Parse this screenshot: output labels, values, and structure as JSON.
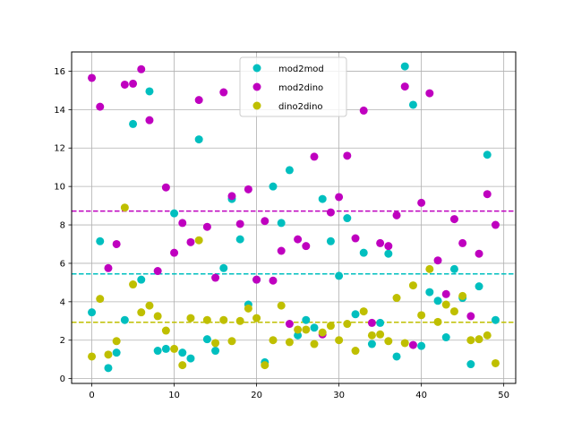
{
  "chart_data": {
    "type": "scatter",
    "title": "",
    "xlabel": "",
    "ylabel": "",
    "xlim": [
      -2.45,
      51.45
    ],
    "ylim": [
      -0.25,
      17.0
    ],
    "x_ticks": [
      0,
      10,
      20,
      30,
      40,
      50
    ],
    "y_ticks": [
      0,
      2,
      4,
      6,
      8,
      10,
      12,
      14,
      16
    ],
    "grid": true,
    "legend_position": "top-center",
    "x": [
      0,
      1,
      2,
      3,
      4,
      5,
      6,
      7,
      8,
      9,
      10,
      11,
      12,
      13,
      14,
      15,
      16,
      17,
      18,
      19,
      20,
      21,
      22,
      23,
      24,
      25,
      26,
      27,
      28,
      29,
      30,
      31,
      32,
      33,
      34,
      35,
      36,
      37,
      38,
      39,
      40,
      41,
      42,
      43,
      44,
      45,
      46,
      47,
      48,
      49
    ],
    "series": [
      {
        "name": "mod2mod",
        "color": "#00bfbf",
        "mean": 5.45,
        "values": [
          3.45,
          7.15,
          0.55,
          1.35,
          3.05,
          13.25,
          5.15,
          14.95,
          1.45,
          1.55,
          8.6,
          1.35,
          1.05,
          12.45,
          2.05,
          1.45,
          5.75,
          9.35,
          7.25,
          3.85,
          5.15,
          0.85,
          10.0,
          8.1,
          10.85,
          2.25,
          3.05,
          2.65,
          9.35,
          7.15,
          5.35,
          8.35,
          3.35,
          6.55,
          1.8,
          2.9,
          6.5,
          1.15,
          16.25,
          14.25,
          1.7,
          4.5,
          4.05,
          2.15,
          5.7,
          4.2,
          0.75,
          4.8,
          11.65,
          3.05
        ]
      },
      {
        "name": "mod2dino",
        "color": "#bf00bf",
        "mean": 8.72,
        "values": [
          15.65,
          14.15,
          5.75,
          7.0,
          15.3,
          15.35,
          16.1,
          13.45,
          5.6,
          9.95,
          6.55,
          8.1,
          7.1,
          14.5,
          7.9,
          5.25,
          14.9,
          9.5,
          8.05,
          9.85,
          5.15,
          8.2,
          5.1,
          6.65,
          2.85,
          7.25,
          6.9,
          11.55,
          2.3,
          8.65,
          9.45,
          11.6,
          7.3,
          13.95,
          2.9,
          7.05,
          6.9,
          8.5,
          15.2,
          1.75,
          9.15,
          14.85,
          6.15,
          4.4,
          8.3,
          7.05,
          3.25,
          6.5,
          9.6,
          8.0
        ]
      },
      {
        "name": "dino2dino",
        "color": "#bfbf00",
        "mean": 2.93,
        "values": [
          1.15,
          4.15,
          1.25,
          1.95,
          8.9,
          4.9,
          3.45,
          3.8,
          3.25,
          2.5,
          1.55,
          0.7,
          3.15,
          7.2,
          3.05,
          1.85,
          3.05,
          1.95,
          3.0,
          3.65,
          3.15,
          0.7,
          2.0,
          3.8,
          1.9,
          2.55,
          2.55,
          1.8,
          2.4,
          2.75,
          2.0,
          2.85,
          1.45,
          3.5,
          2.25,
          2.3,
          1.95,
          4.2,
          1.85,
          4.85,
          3.3,
          5.7,
          2.95,
          3.85,
          3.5,
          4.3,
          2.0,
          2.05,
          2.25,
          0.8
        ]
      }
    ]
  }
}
